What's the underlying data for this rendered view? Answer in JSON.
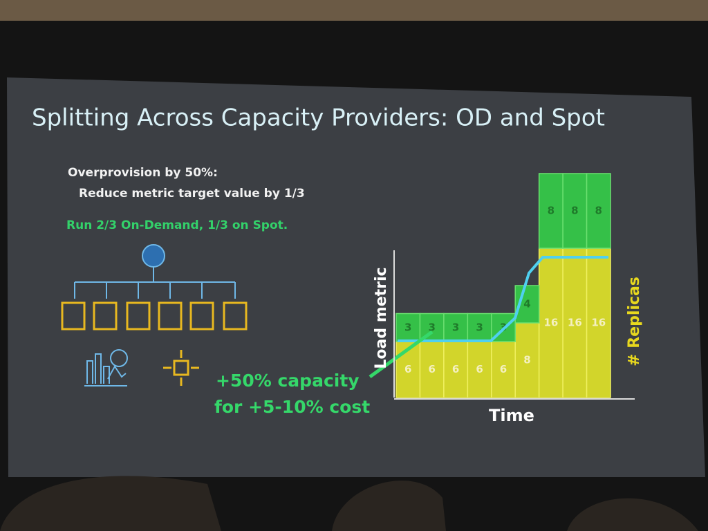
{
  "slide": {
    "title": "Splitting Across Capacity Providers: OD and Spot",
    "notes": [
      "Overprovision by 50%:",
      "Reduce metric target value by 1/3"
    ],
    "split": "Run 2/3 On-Demand, 1/3 on Spot.",
    "callout": [
      "+50% capacity",
      "for +5-10% cost"
    ]
  },
  "chart_data": {
    "type": "bar",
    "stacked": true,
    "categories": [
      null,
      null,
      null,
      null,
      null,
      null,
      null,
      null,
      null
    ],
    "series": [
      {
        "color": "#d2d52b",
        "values": [
          6,
          6,
          6,
          6,
          6,
          8,
          16,
          16,
          16
        ]
      },
      {
        "color": "#35c048",
        "values": [
          3,
          3,
          3,
          3,
          3,
          4,
          8,
          8,
          8
        ]
      }
    ],
    "ylim": [
      0,
      26
    ],
    "y_label": "Load metric",
    "y2_label": "# Replicas",
    "x_label": "Time"
  }
}
